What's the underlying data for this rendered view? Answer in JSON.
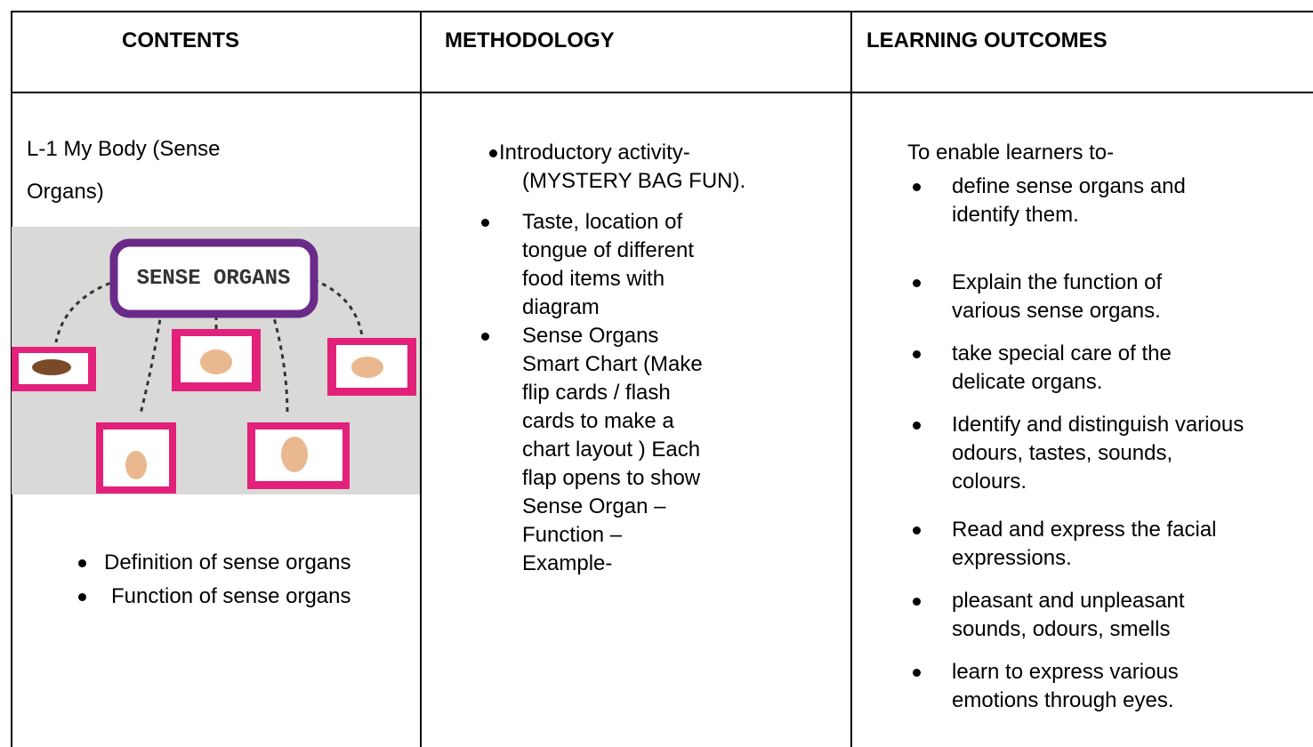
{
  "table": {
    "headers": [
      "CONTENTS",
      "METHODOLOGY",
      "LEARNING OUTCOMES"
    ],
    "contents": {
      "title_lines": [
        "L-1 My Body (Sense",
        "Organs)"
      ],
      "image_label": "SENSE ORGANS",
      "bullets": [
        "Definition of sense organs",
        "Function of sense organs"
      ]
    },
    "methodology": {
      "items": [
        [
          "Introductory activity-",
          "(MYSTERY BAG FUN)."
        ],
        [
          "Taste, location of",
          "tongue of different",
          "food items with",
          "diagram"
        ],
        [
          "Sense Organs",
          "Smart Chart (Make",
          "flip cards / flash",
          "cards to make a",
          "chart layout ) Each",
          "flap opens to show",
          "Sense Organ –",
          "Function –",
          "Example-"
        ]
      ]
    },
    "learning_outcomes": {
      "intro": "To enable learners to-",
      "items": [
        [
          "define sense organs and",
          "identify them."
        ],
        [
          "Explain the function of",
          "various sense organs."
        ],
        [
          "take special care of the",
          "delicate organs."
        ],
        [
          "Identify and distinguish various",
          "odours, tastes, sounds,",
          "colours."
        ],
        [
          "Read and express the facial",
          "expressions."
        ],
        [
          "pleasant and unpleasant",
          "sounds, odours, smells"
        ],
        [
          "learn to express various",
          "emotions through eyes."
        ]
      ]
    }
  }
}
